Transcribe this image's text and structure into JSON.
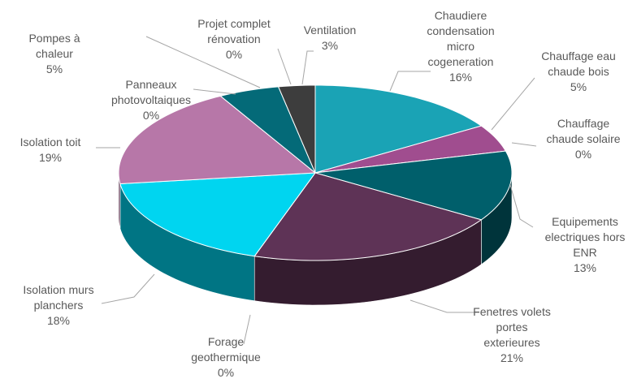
{
  "chart_data": {
    "type": "pie3d",
    "categories": [
      "Chaudiere condensation micro cogeneration",
      "Chauffage eau chaude bois",
      "Chauffage chaude solaire",
      "Equipements electriques hors ENR",
      "Fenetres volets portes exterieures",
      "Forage geothermique",
      "Isolation murs planchers",
      "Isolation toit",
      "Panneaux photovoltaiques",
      "Pompes à chaleur",
      "Projet complet rénovation",
      "Ventilation"
    ],
    "values": [
      16,
      5,
      0,
      13,
      21,
      0,
      18,
      19,
      0,
      5,
      0,
      3
    ],
    "value_labels": [
      "16%",
      "5%",
      "0%",
      "13%",
      "21%",
      "0%",
      "18%",
      "19%",
      "0%",
      "5%",
      "0%",
      "3%"
    ],
    "colors": [
      "#1aa3b5",
      "#a04d8f",
      "#c7e0f0",
      "#005f6b",
      "#5e3356",
      "#9bd7e6",
      "#00d5f0",
      "#b777a8",
      "#7fb7c9",
      "#046a78",
      "#8aa0b0",
      "#3d3d3d"
    ]
  }
}
